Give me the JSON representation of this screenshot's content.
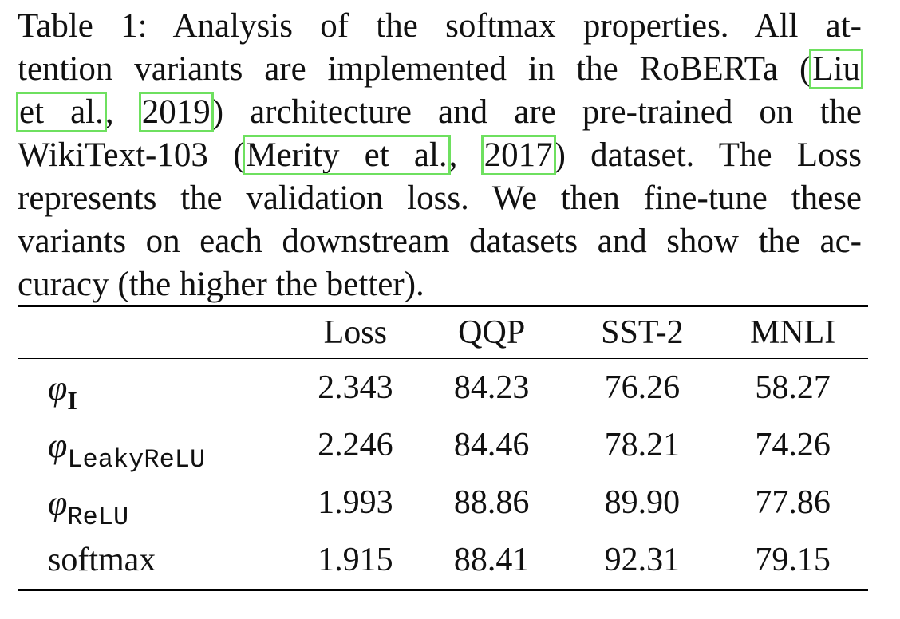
{
  "caption": {
    "lines": [
      [
        "Table 1:  Analysis of the softmax properties.  All at-"
      ],
      [
        "tention variants are implemented in the RoBERTa (",
        "Liu",
        ""
      ],
      [
        "et al.",
        ", ",
        "2019",
        ") architecture and are pre-trained on the"
      ],
      [
        "WikiText-103 (",
        "Merity et al.",
        ", ",
        "2017",
        ") dataset.  The Loss"
      ],
      [
        "represents the validation loss.  We then fine-tune these"
      ],
      [
        "variants on each downstream datasets and show the ac-"
      ],
      [
        "curacy (the higher the better)."
      ]
    ],
    "l1": "Table 1:  Analysis of the softmax properties.  All at-",
    "l2a": "tention variants are implemented in the RoBERTa (",
    "l2cite": "Liu",
    "l3cite1": "et al.",
    "l3b": ", ",
    "l3cite2": "2019",
    "l3c": ") architecture and are pre-trained on the",
    "l4a": "WikiText-103 (",
    "l4cite1": "Merity et al.",
    "l4b": ", ",
    "l4cite2": "2017",
    "l4c": ") dataset.  The Loss",
    "l5": "represents the validation loss.  We then fine-tune these",
    "l6": "variants on each downstream datasets and show the ac-",
    "l7": "curacy (the higher the better)."
  },
  "table": {
    "headers": [
      "",
      "Loss",
      "QQP",
      "SST-2",
      "MNLI"
    ],
    "rows": [
      {
        "symbol": "φ",
        "subscript": "I",
        "values": [
          "2.343",
          "84.23",
          "76.26",
          "58.27"
        ]
      },
      {
        "symbol": "φ",
        "subscript": "LeakyReLU",
        "values": [
          "2.246",
          "84.46",
          "78.21",
          "74.26"
        ]
      },
      {
        "symbol": "φ",
        "subscript": "ReLU",
        "values": [
          "1.993",
          "88.86",
          "89.90",
          "77.86"
        ]
      },
      {
        "label": "softmax",
        "values": [
          "1.915",
          "88.41",
          "92.31",
          "79.15"
        ]
      }
    ]
  },
  "colors": {
    "citation_box": "#6ee05f",
    "text": "#111111"
  }
}
